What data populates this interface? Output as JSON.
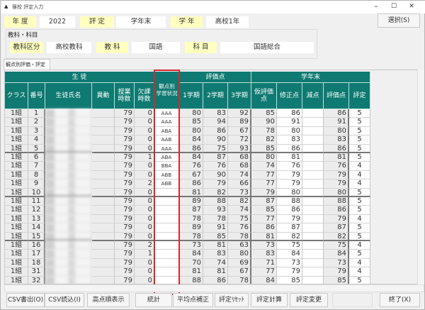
{
  "window": {
    "title": "篠校 評定入力",
    "min": "–",
    "max": "☐",
    "close": "✕"
  },
  "header": {
    "year_label": "年 度",
    "year_value": "2022",
    "hyotei_label": "評 定",
    "hyotei_value": "学年末",
    "grade_label": "学 年",
    "grade_value": "高校1年",
    "select_button": "選択(S)"
  },
  "subject": {
    "group_label": "教科・科目",
    "kubun_label": "教科区分",
    "kubun_value": "高校教科",
    "kyoka_label": "教 科",
    "kyoka_value": "国語",
    "kamoku_label": "科 目",
    "kamoku_value": "国語総合"
  },
  "tab": {
    "label": "観点別評価・評定"
  },
  "table": {
    "group_headers": {
      "student": "生 徒",
      "kanten": "観点別\n学習状況",
      "hyokaten": "評価点",
      "gakunenmatsu": "学年末"
    },
    "columns": [
      "クラス",
      "番号",
      "生徒氏名",
      "異動",
      "授業時数",
      "欠課時数",
      "観点別学習状況",
      "1学期",
      "2学期",
      "3学期",
      "仮評価点",
      "修正点",
      "減点",
      "評価点",
      "評定"
    ],
    "rows": [
      [
        "1組",
        "1",
        "",
        "",
        "79",
        "0",
        "AAA",
        "80",
        "83",
        "92",
        "85",
        "86",
        "",
        "86",
        "5"
      ],
      [
        "1組",
        "2",
        "",
        "",
        "79",
        "0",
        "AAA",
        "85",
        "94",
        "89",
        "90",
        "91",
        "",
        "91",
        "5"
      ],
      [
        "1組",
        "3",
        "",
        "",
        "79",
        "0",
        "ABA",
        "80",
        "86",
        "67",
        "78",
        "80",
        "",
        "80",
        "5"
      ],
      [
        "1組",
        "4",
        "",
        "",
        "79",
        "0",
        "AAB",
        "84",
        "90",
        "72",
        "82",
        "83",
        "",
        "83",
        "5"
      ],
      [
        "1組",
        "5",
        "",
        "",
        "79",
        "0",
        "AAA",
        "86",
        "75",
        "93",
        "85",
        "86",
        "",
        "86",
        "5"
      ],
      [
        "1組",
        "6",
        "",
        "",
        "79",
        "1",
        "ABA",
        "84",
        "87",
        "68",
        "80",
        "81",
        "",
        "81",
        "5"
      ],
      [
        "1組",
        "7",
        "",
        "",
        "79",
        "0",
        "BBA",
        "76",
        "76",
        "68",
        "74",
        "76",
        "",
        "76",
        "4"
      ],
      [
        "1組",
        "8",
        "",
        "",
        "79",
        "0",
        "ABB",
        "67",
        "90",
        "74",
        "77",
        "79",
        "",
        "79",
        "4"
      ],
      [
        "1組",
        "9",
        "",
        "",
        "79",
        "2",
        "ABB",
        "86",
        "79",
        "66",
        "77",
        "79",
        "",
        "79",
        "4"
      ],
      [
        "1組",
        "10",
        "",
        "",
        "79",
        "0",
        "",
        "81",
        "82",
        "73",
        "79",
        "80",
        "",
        "80",
        "5"
      ],
      [
        "1組",
        "11",
        "",
        "",
        "79",
        "0",
        "",
        "89",
        "88",
        "82",
        "87",
        "88",
        "",
        "88",
        "5"
      ],
      [
        "1組",
        "12",
        "",
        "",
        "79",
        "0",
        "",
        "87",
        "93",
        "74",
        "85",
        "86",
        "",
        "86",
        "5"
      ],
      [
        "1組",
        "13",
        "",
        "",
        "79",
        "0",
        "",
        "78",
        "78",
        "75",
        "77",
        "79",
        "",
        "79",
        "4"
      ],
      [
        "1組",
        "14",
        "",
        "",
        "79",
        "0",
        "",
        "89",
        "91",
        "76",
        "86",
        "87",
        "",
        "87",
        "5"
      ],
      [
        "1組",
        "15",
        "",
        "",
        "79",
        "0",
        "",
        "78",
        "85",
        "78",
        "81",
        "82",
        "",
        "82",
        "5"
      ],
      [
        "1組",
        "16",
        "",
        "",
        "79",
        "2",
        "",
        "73",
        "81",
        "63",
        "73",
        "75",
        "",
        "75",
        "4"
      ],
      [
        "1組",
        "17",
        "",
        "",
        "79",
        "1",
        "",
        "84",
        "83",
        "80",
        "83",
        "84",
        "",
        "84",
        "5"
      ],
      [
        "1組",
        "18",
        "",
        "",
        "79",
        "0",
        "",
        "70",
        "74",
        "69",
        "71",
        "73",
        "",
        "73",
        "4"
      ],
      [
        "1組",
        "31",
        "",
        "",
        "79",
        "0",
        "",
        "81",
        "81",
        "67",
        "77",
        "79",
        "",
        "79",
        "4"
      ],
      [
        "1組",
        "32",
        "",
        "",
        "79",
        "0",
        "",
        "88",
        "86",
        "78",
        "84",
        "85",
        "",
        "85",
        "5"
      ]
    ]
  },
  "buttons": [
    "CSV書出(O)",
    "CSV読込(I)",
    "高点順表示",
    "統計",
    "平均点補正",
    "評定ﾘｾｯﾄ",
    "評定計算",
    "評定変更",
    "",
    "終了(X)"
  ],
  "colors": {
    "header_bg": "#0e7a72",
    "label_bg": "#ffffc0",
    "highlight": "#d8262c"
  }
}
